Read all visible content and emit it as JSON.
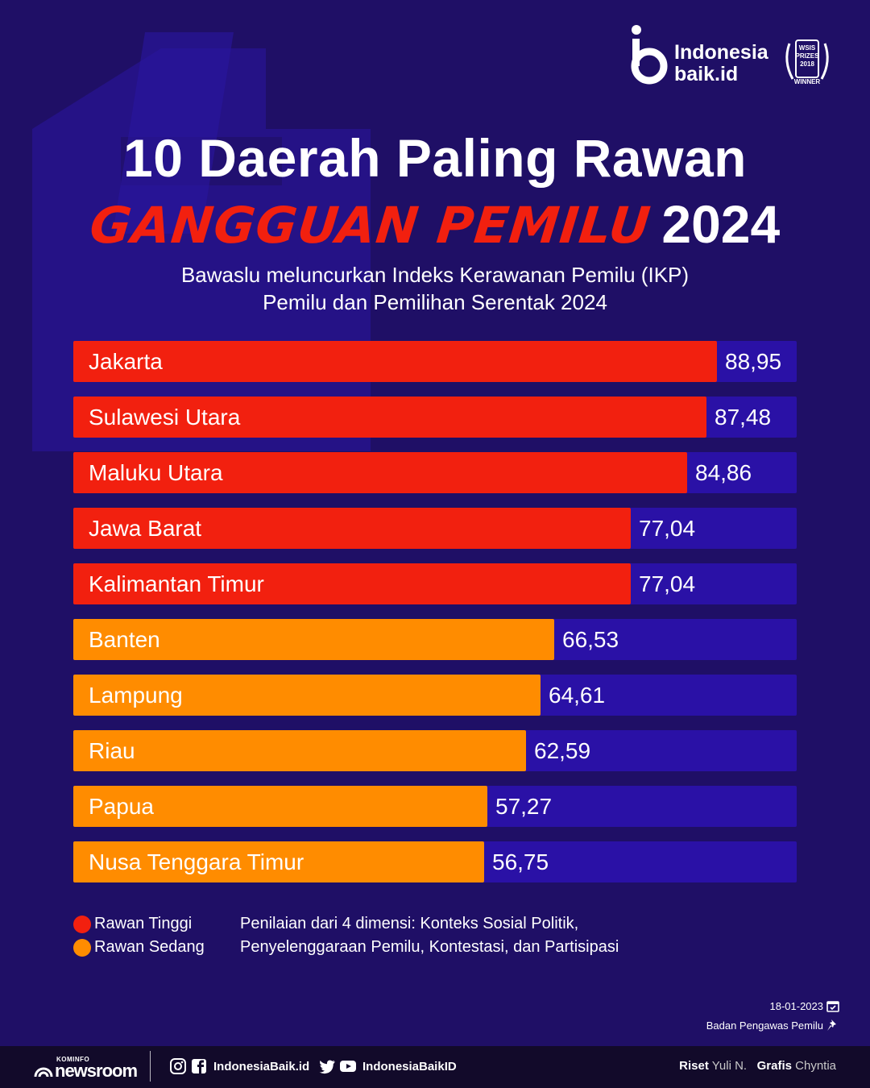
{
  "brand": {
    "logo_line1": "Indonesia",
    "logo_line2": "baik.id",
    "award_line1": "WSIS",
    "award_line2": "PRIZES",
    "award_line3": "2018",
    "award_line4": "WINNER"
  },
  "title": {
    "line1": "10 Daerah Paling Rawan",
    "line2_highlight": "GANGGUAN PEMILU",
    "line2_year": "2024"
  },
  "subtitle": {
    "line1": "Bawaslu meluncurkan Indeks Kerawanan Pemilu (IKP)",
    "line2": "Pemilu dan Pemilihan Serentak 2024"
  },
  "colors": {
    "background": "#1f0f66",
    "track": "#2a11a6",
    "rawan_tinggi": "#f2200f",
    "rawan_sedang": "#ff8c00"
  },
  "chart_data": {
    "type": "bar",
    "orientation": "horizontal",
    "xlim": [
      0,
      100
    ],
    "categories": [
      "Jakarta",
      "Sulawesi Utara",
      "Maluku Utara",
      "Jawa Barat",
      "Kalimantan Timur",
      "Banten",
      "Lampung",
      "Riau",
      "Papua",
      "Nusa Tenggara Timur"
    ],
    "values": [
      88.95,
      87.48,
      84.86,
      77.04,
      77.04,
      66.53,
      64.61,
      62.59,
      57.27,
      56.75
    ],
    "value_labels": [
      "88,95",
      "87,48",
      "84,86",
      "77,04",
      "77,04",
      "66,53",
      "64,61",
      "62,59",
      "57,27",
      "56,75"
    ],
    "level": [
      "tinggi",
      "tinggi",
      "tinggi",
      "tinggi",
      "tinggi",
      "sedang",
      "sedang",
      "sedang",
      "sedang",
      "sedang"
    ]
  },
  "legend": {
    "tinggi": "Rawan Tinggi",
    "sedang": "Rawan Sedang"
  },
  "note": {
    "line1": "Penilaian dari 4 dimensi: Konteks Sosial Politik,",
    "line2": "Penyelenggaraan Pemilu, Kontestasi, dan Partisipasi"
  },
  "meta": {
    "date": "18-01-2023",
    "source": "Badan Pengawas Pemilu"
  },
  "footer": {
    "kominfo_small": "KOMINFO",
    "kominfo_big": "newsroom",
    "social_web": "IndonesiaBaik.id",
    "social_handle": "IndonesiaBaikID",
    "riset_label": "Riset",
    "riset_name": "Yuli N.",
    "grafis_label": "Grafis",
    "grafis_name": "Chyntia"
  }
}
